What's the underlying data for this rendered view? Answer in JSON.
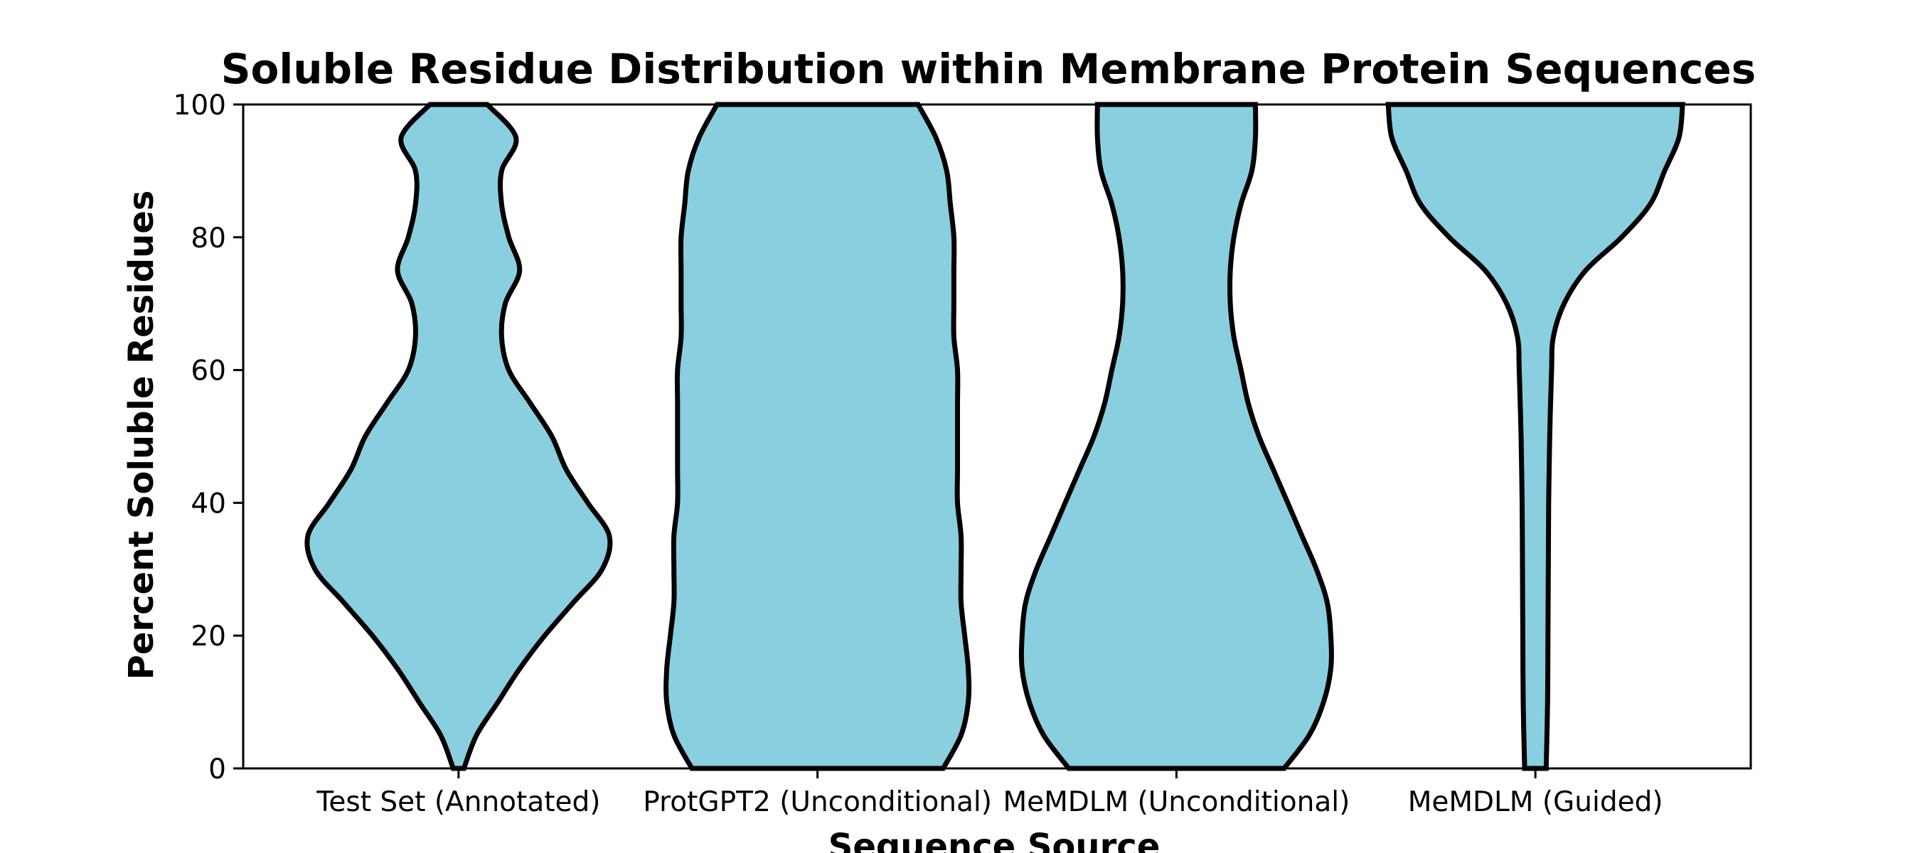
{
  "chart_data": {
    "type": "violin",
    "title": "Soluble Residue Distribution within Membrane Protein Sequences",
    "xlabel": "Sequence Source",
    "ylabel": "Percent Soluble Residues",
    "ylim": [
      0,
      100
    ],
    "yticks": [
      "0",
      "20",
      "40",
      "60",
      "80",
      "100"
    ],
    "categories": [
      "Test Set (Annotated)",
      "ProtGPT2 (Unconditional)",
      "MeMDLM (Unconditional)",
      "MeMDLM (Guided)"
    ],
    "fill_color": "#89cfe0",
    "edge_color": "#000000",
    "grid": false,
    "violins": [
      {
        "category": "Test Set (Annotated)",
        "y": [
          0,
          5,
          10,
          15,
          20,
          25,
          30,
          35,
          40,
          45,
          50,
          55,
          60,
          65,
          70,
          75,
          80,
          85,
          90,
          95,
          100
        ],
        "width": [
          0.015,
          0.05,
          0.11,
          0.17,
          0.24,
          0.32,
          0.4,
          0.42,
          0.36,
          0.3,
          0.26,
          0.2,
          0.14,
          0.12,
          0.13,
          0.17,
          0.14,
          0.12,
          0.12,
          0.16,
          0.08
        ]
      },
      {
        "category": "ProtGPT2 (Unconditional)",
        "y": [
          0,
          5,
          10,
          15,
          20,
          25,
          30,
          35,
          40,
          45,
          50,
          55,
          60,
          65,
          70,
          75,
          80,
          85,
          90,
          95,
          100
        ],
        "width": [
          0.35,
          0.4,
          0.42,
          0.42,
          0.41,
          0.4,
          0.4,
          0.4,
          0.39,
          0.39,
          0.39,
          0.39,
          0.39,
          0.38,
          0.38,
          0.38,
          0.38,
          0.37,
          0.36,
          0.33,
          0.28
        ]
      },
      {
        "category": "MeMDLM (Unconditional)",
        "y": [
          0,
          5,
          10,
          15,
          20,
          25,
          30,
          35,
          40,
          45,
          50,
          55,
          60,
          65,
          70,
          75,
          80,
          85,
          90,
          95,
          100
        ],
        "width": [
          0.3,
          0.37,
          0.41,
          0.43,
          0.43,
          0.42,
          0.39,
          0.35,
          0.31,
          0.27,
          0.23,
          0.2,
          0.18,
          0.16,
          0.15,
          0.15,
          0.16,
          0.18,
          0.21,
          0.22,
          0.22
        ]
      },
      {
        "category": "MeMDLM (Guided)",
        "y": [
          0,
          10,
          20,
          30,
          40,
          50,
          60,
          65,
          70,
          75,
          80,
          85,
          90,
          95,
          100
        ],
        "width": [
          0.03,
          0.034,
          0.035,
          0.036,
          0.037,
          0.04,
          0.045,
          0.05,
          0.08,
          0.14,
          0.24,
          0.32,
          0.36,
          0.4,
          0.41
        ]
      }
    ]
  }
}
